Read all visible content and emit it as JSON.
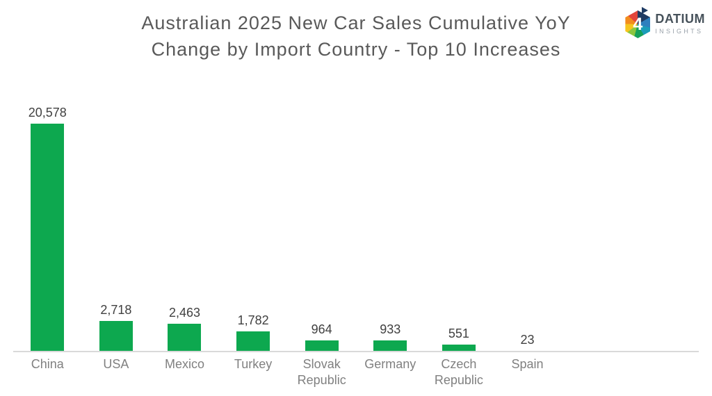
{
  "title": {
    "line1": "Australian 2025 New Car Sales Cumulative YoY",
    "line2": "Change by Import Country - Top 10 Increases"
  },
  "logo": {
    "icon": "datium-hexagon-logo",
    "icon_glyph": "4",
    "name": "DATIUM",
    "subtitle": "INSIGHTS"
  },
  "chart_data": {
    "type": "bar",
    "title": "Australian 2025 New Car Sales Cumulative YoY Change by Import Country - Top 10 Increases",
    "categories": [
      "China",
      "USA",
      "Mexico",
      "Turkey",
      "Slovak Republic",
      "Germany",
      "Czech Republic",
      "Spain"
    ],
    "values": [
      20578,
      2718,
      2463,
      1782,
      964,
      933,
      551,
      23
    ],
    "value_labels": [
      "20,578",
      "2,718",
      "2,463",
      "1,782",
      "964",
      "933",
      "551",
      "23"
    ],
    "xlabel": "",
    "ylabel": "",
    "ylim": [
      0,
      20578
    ],
    "axis_slots": 10,
    "grid": false,
    "legend": false,
    "data_labels": true,
    "bar_color": "#0DA84F",
    "axis_line_color": "#D9D9D9",
    "value_label_color": "#404040",
    "category_label_color": "#808080",
    "title_color": "#595959"
  }
}
